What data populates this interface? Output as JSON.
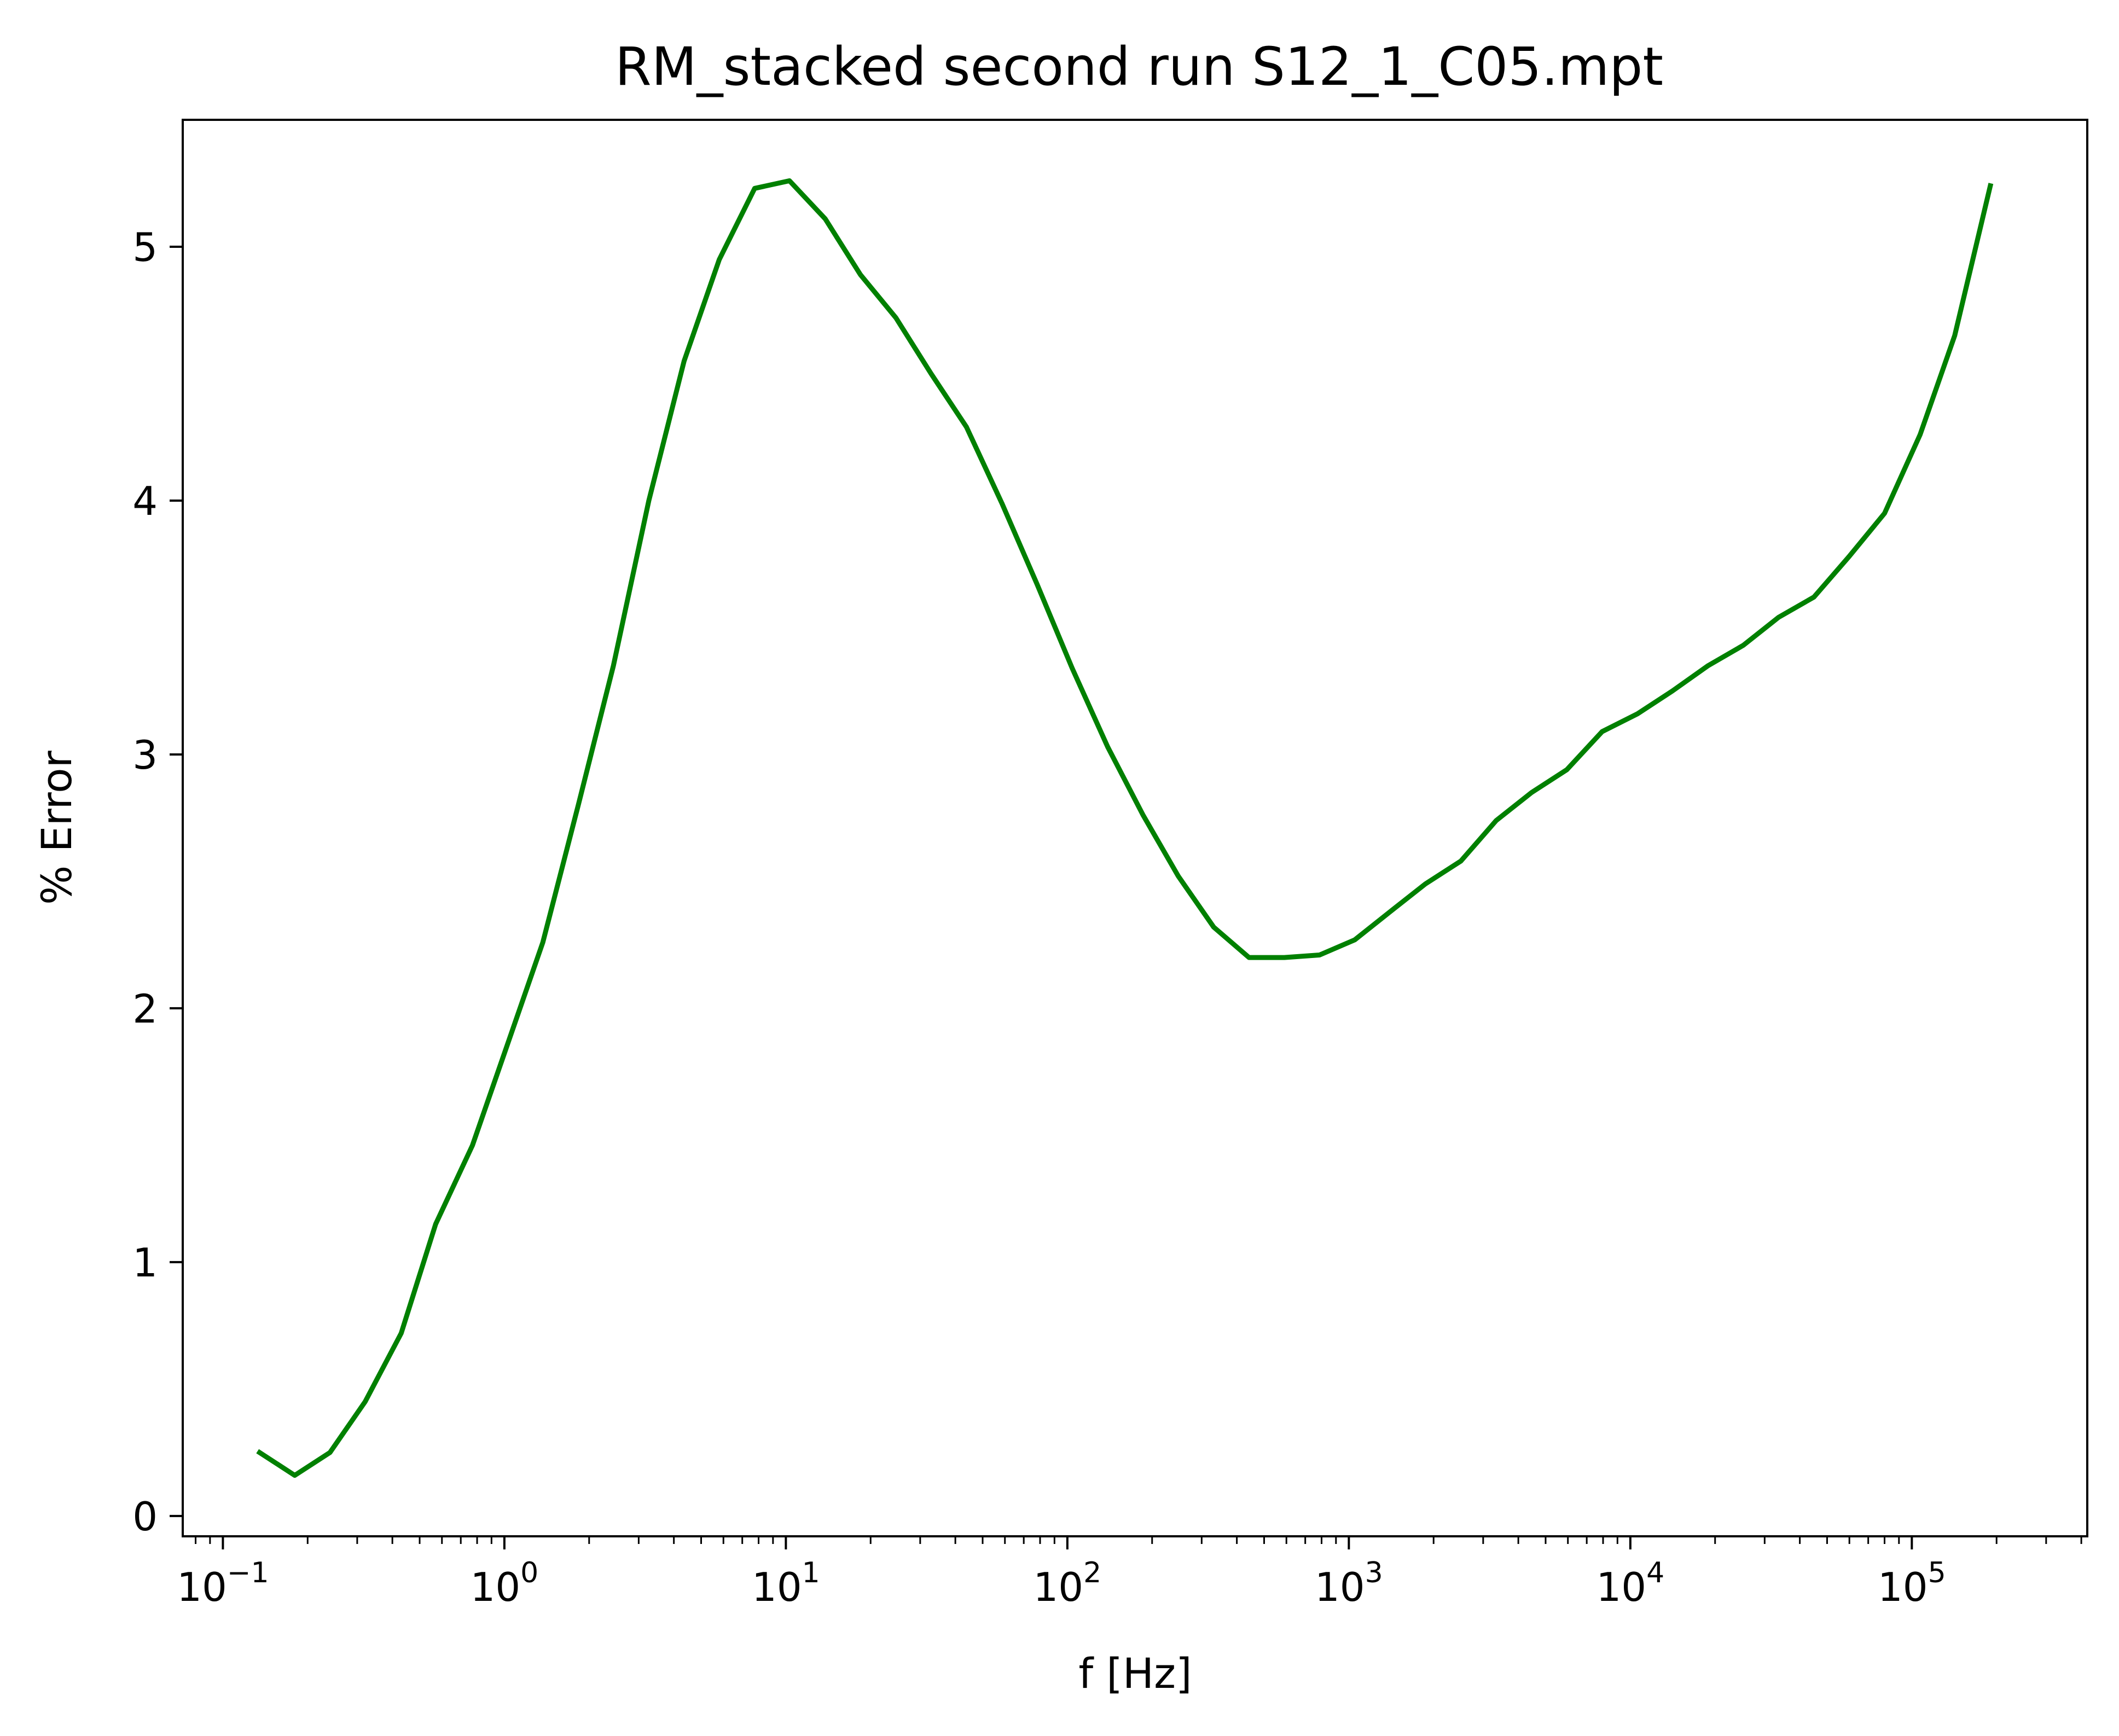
{
  "chart_data": {
    "type": "line",
    "title": "RM_stacked second run S12_1_C05.mpt",
    "xlabel": "f [Hz]",
    "ylabel": "% Error",
    "x_scale": "log",
    "xlim": [
      0.072,
      420000
    ],
    "ylim": [
      -0.08,
      5.5
    ],
    "x_major_ticks": [
      {
        "base": "10",
        "exp": "−1",
        "value": 0.1
      },
      {
        "base": "10",
        "exp": "0",
        "value": 1
      },
      {
        "base": "10",
        "exp": "1",
        "value": 10
      },
      {
        "base": "10",
        "exp": "2",
        "value": 100
      },
      {
        "base": "10",
        "exp": "3",
        "value": 1000
      },
      {
        "base": "10",
        "exp": "4",
        "value": 10000
      },
      {
        "base": "10",
        "exp": "5",
        "value": 100000
      }
    ],
    "y_ticks": [
      {
        "label": "0",
        "value": 0
      },
      {
        "label": "1",
        "value": 1
      },
      {
        "label": "2",
        "value": 2
      },
      {
        "label": "3",
        "value": 3
      },
      {
        "label": "4",
        "value": 4
      },
      {
        "label": "5",
        "value": 5
      }
    ],
    "grid": false,
    "legend": "none",
    "series": [
      {
        "color": "#008000",
        "x": [
          0.135,
          0.18,
          0.24,
          0.32,
          0.43,
          0.57,
          0.77,
          1.02,
          1.37,
          1.83,
          2.44,
          3.26,
          4.35,
          5.8,
          7.75,
          10.3,
          13.8,
          18.4,
          24.6,
          32.8,
          43.8,
          58.5,
          78.1,
          104,
          139,
          186,
          248,
          331,
          442,
          590,
          787,
          1050,
          1400,
          1870,
          2500,
          3340,
          4460,
          5950,
          7940,
          10600,
          14100,
          18900,
          25200,
          33600,
          44900,
          59900,
          80000,
          107000,
          142000,
          190000
        ],
        "y": [
          0.25,
          0.16,
          0.25,
          0.45,
          0.72,
          1.15,
          1.46,
          1.85,
          2.26,
          2.8,
          3.35,
          4.0,
          4.55,
          4.95,
          5.23,
          5.26,
          5.11,
          4.89,
          4.72,
          4.5,
          4.29,
          3.99,
          3.67,
          3.34,
          3.03,
          2.76,
          2.52,
          2.32,
          2.2,
          2.2,
          2.21,
          2.27,
          2.38,
          2.49,
          2.58,
          2.74,
          2.85,
          2.94,
          3.09,
          3.16,
          3.25,
          3.35,
          3.43,
          3.54,
          3.62,
          3.78,
          3.95,
          4.26,
          4.65,
          5.24
        ]
      }
    ]
  }
}
